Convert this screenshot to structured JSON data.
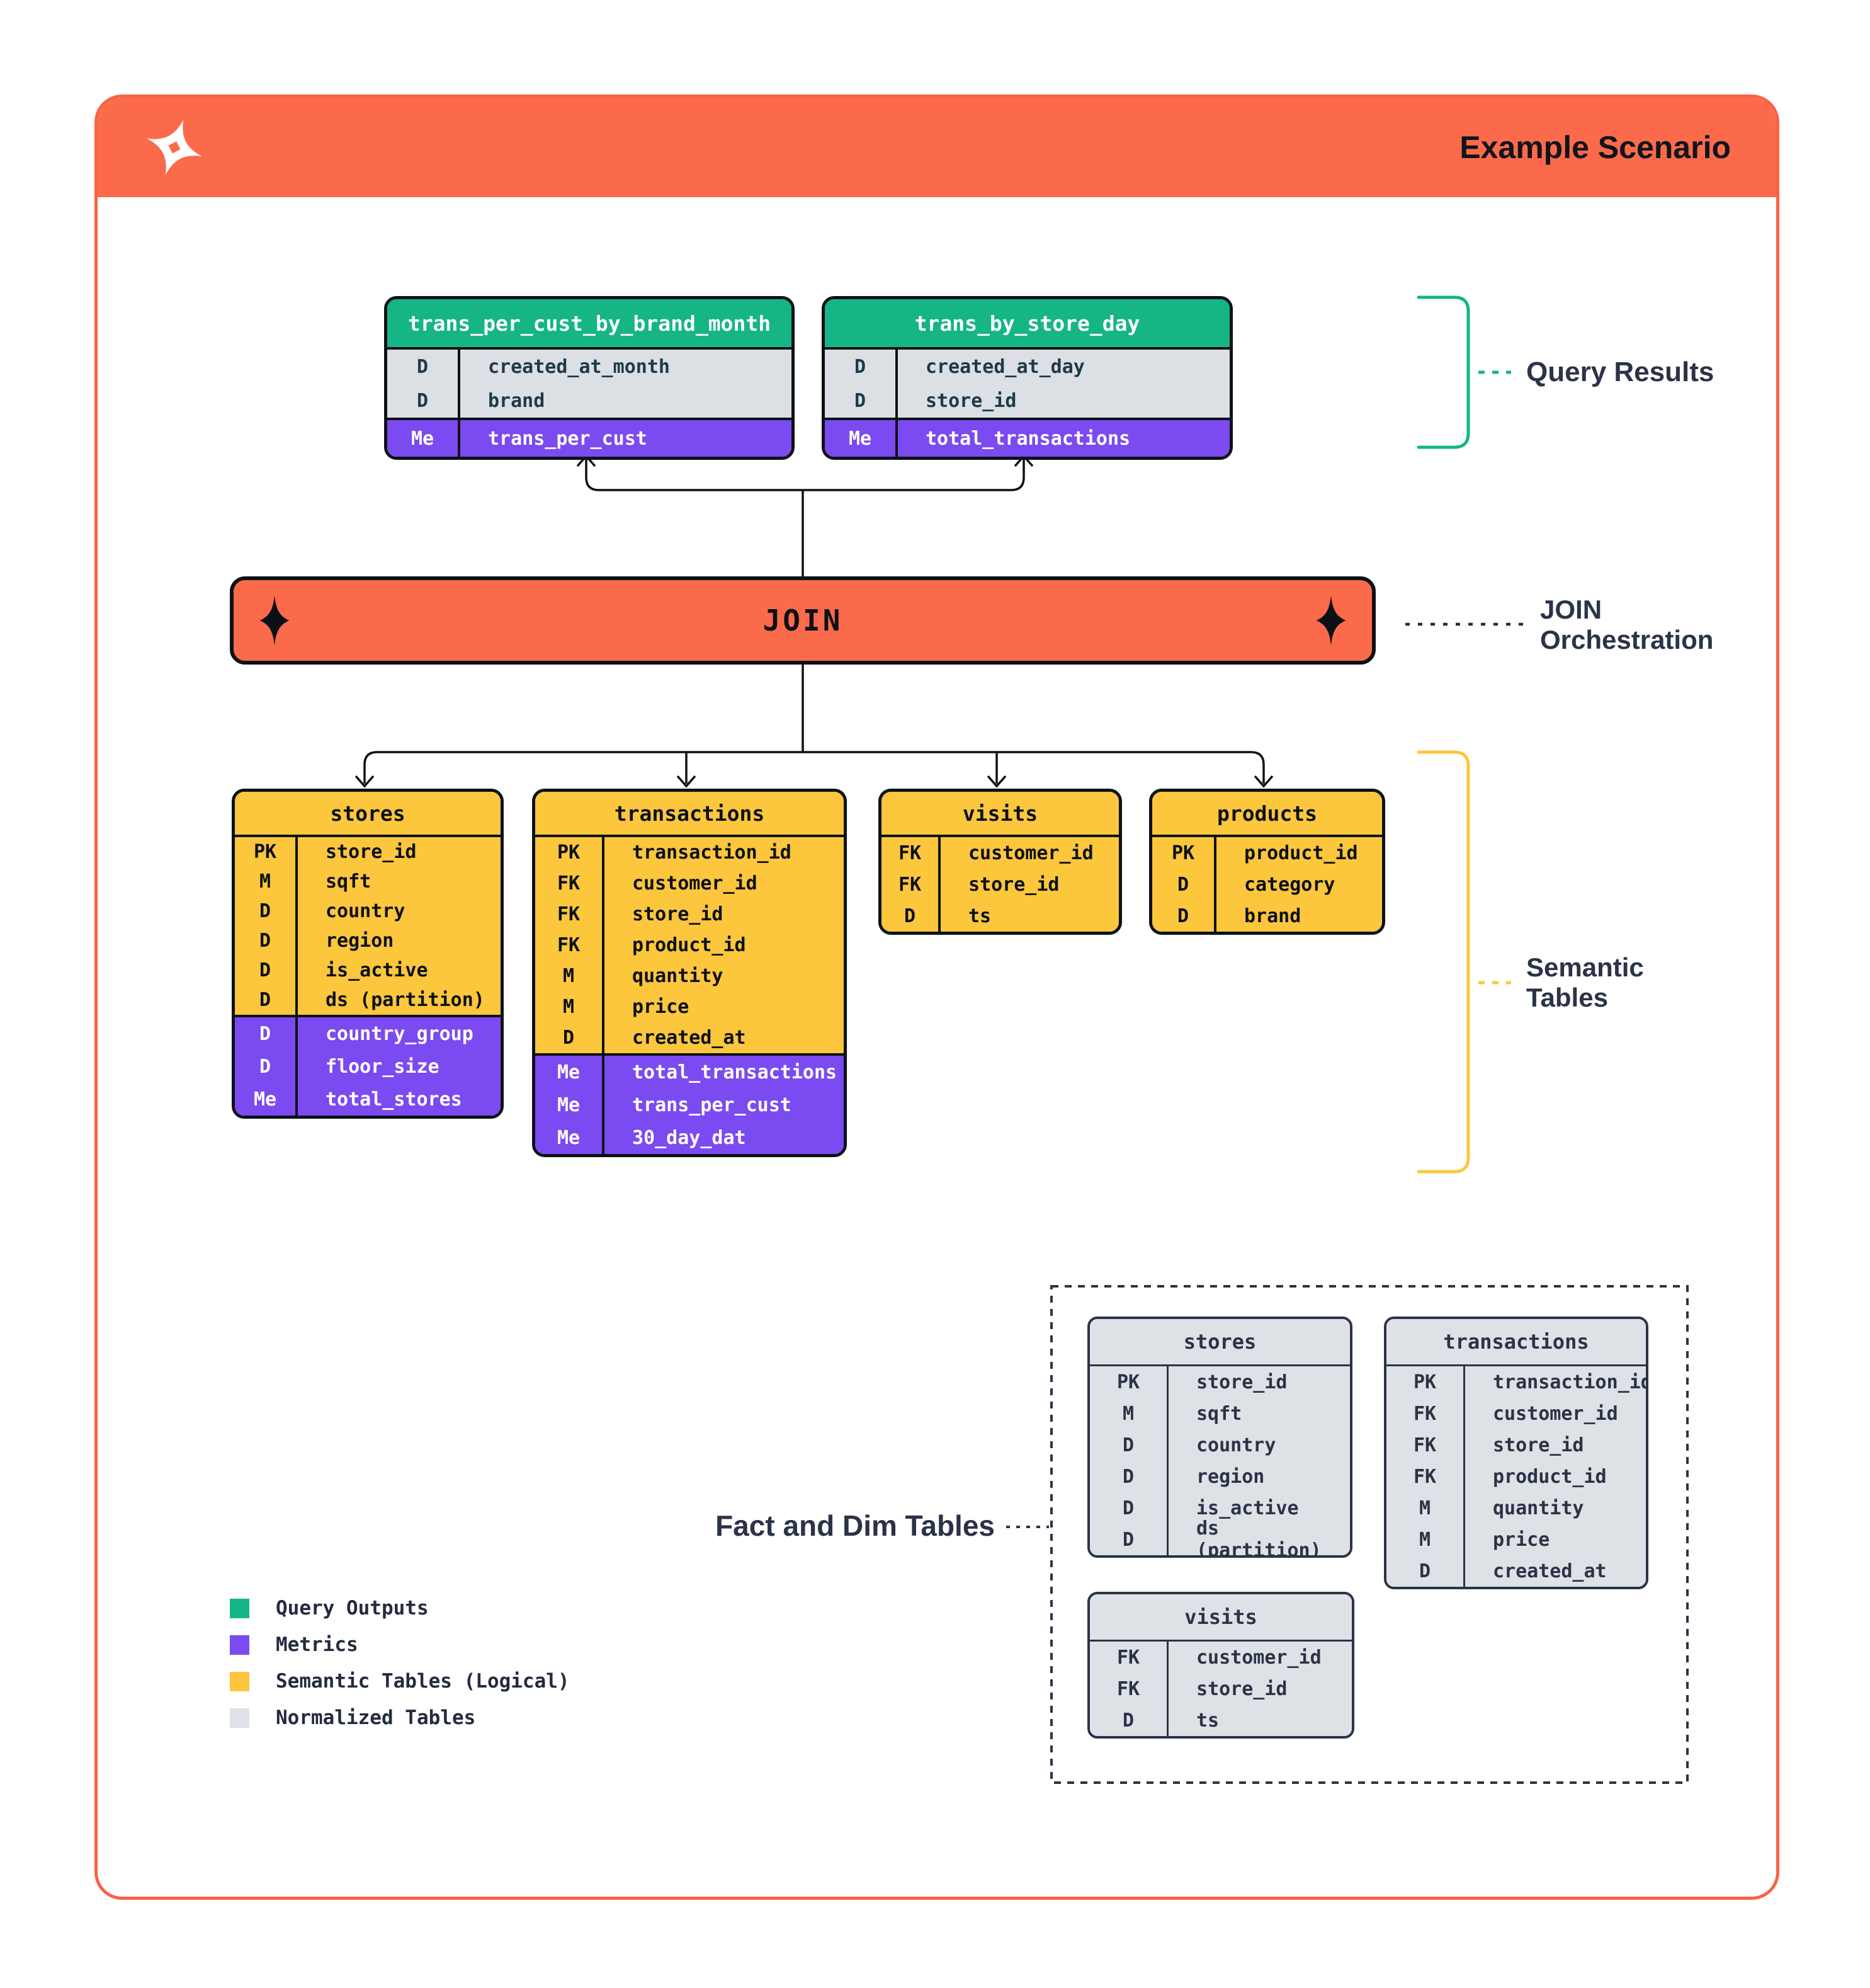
{
  "header": {
    "title": "Example Scenario",
    "logo_icon": "four-point-star-logo"
  },
  "colors": {
    "accent_orange": "#FB6A4A",
    "frame_orange": "#F96247",
    "query_green": "#15B585",
    "metric_purple": "#7B4AF0",
    "semantic_yellow": "#FCC63D",
    "normalized_gray": "#DEE1E6",
    "ink_black": "#0D1117",
    "navy_text": "#2A3348"
  },
  "annotations": {
    "query_results": "Query Results",
    "join_line1": "JOIN",
    "join_line2": "Orchestration",
    "semantic_line1": "Semantic",
    "semantic_line2": "Tables",
    "fact_dim": "Fact and Dim Tables"
  },
  "join": {
    "label": "JOIN"
  },
  "query_results": {
    "tables": [
      {
        "title": "trans_per_cust_by_brand_month",
        "sections": [
          {
            "style": "gray",
            "rows": [
              [
                "D",
                "created_at_month"
              ],
              [
                "D",
                "brand"
              ]
            ]
          },
          {
            "style": "purple",
            "rows": [
              [
                "Me",
                "trans_per_cust"
              ]
            ]
          }
        ]
      },
      {
        "title": "trans_by_store_day",
        "sections": [
          {
            "style": "gray",
            "rows": [
              [
                "D",
                "created_at_day"
              ],
              [
                "D",
                "store_id"
              ]
            ]
          },
          {
            "style": "purple",
            "rows": [
              [
                "Me",
                "total_transactions"
              ]
            ]
          }
        ]
      }
    ]
  },
  "semantic_tables": {
    "tables": [
      {
        "title": "stores",
        "sections": [
          {
            "style": "yellow",
            "rows": [
              [
                "PK",
                "store_id"
              ],
              [
                "M",
                "sqft"
              ],
              [
                "D",
                "country"
              ],
              [
                "D",
                "region"
              ],
              [
                "D",
                "is_active"
              ],
              [
                "D",
                "ds (partition)"
              ]
            ]
          },
          {
            "style": "purple",
            "rows": [
              [
                "D",
                "country_group"
              ],
              [
                "D",
                "floor_size"
              ],
              [
                "Me",
                "total_stores"
              ]
            ]
          }
        ]
      },
      {
        "title": "transactions",
        "sections": [
          {
            "style": "yellow",
            "rows": [
              [
                "PK",
                "transaction_id"
              ],
              [
                "FK",
                "customer_id"
              ],
              [
                "FK",
                "store_id"
              ],
              [
                "FK",
                "product_id"
              ],
              [
                "M",
                "quantity"
              ],
              [
                "M",
                "price"
              ],
              [
                "D",
                "created_at"
              ]
            ]
          },
          {
            "style": "purple",
            "rows": [
              [
                "Me",
                "total_transactions"
              ],
              [
                "Me",
                "trans_per_cust"
              ],
              [
                "Me",
                "30_day_dat"
              ]
            ]
          }
        ]
      },
      {
        "title": "visits",
        "sections": [
          {
            "style": "yellow",
            "rows": [
              [
                "FK",
                "customer_id"
              ],
              [
                "FK",
                "store_id"
              ],
              [
                "D",
                "ts"
              ]
            ]
          }
        ]
      },
      {
        "title": "products",
        "sections": [
          {
            "style": "yellow",
            "rows": [
              [
                "PK",
                "product_id"
              ],
              [
                "D",
                "category"
              ],
              [
                "D",
                "brand"
              ]
            ]
          }
        ]
      }
    ]
  },
  "normalized_tables": {
    "tables": [
      {
        "title": "stores",
        "sections": [
          {
            "style": "norm",
            "rows": [
              [
                "PK",
                "store_id"
              ],
              [
                "M",
                "sqft"
              ],
              [
                "D",
                "country"
              ],
              [
                "D",
                "region"
              ],
              [
                "D",
                "is_active"
              ],
              [
                "D",
                "ds (partition)"
              ]
            ]
          }
        ]
      },
      {
        "title": "transactions",
        "sections": [
          {
            "style": "norm",
            "rows": [
              [
                "PK",
                "transaction_id"
              ],
              [
                "FK",
                "customer_id"
              ],
              [
                "FK",
                "store_id"
              ],
              [
                "FK",
                "product_id"
              ],
              [
                "M",
                "quantity"
              ],
              [
                "M",
                "price"
              ],
              [
                "D",
                "created_at"
              ]
            ]
          }
        ]
      },
      {
        "title": "visits",
        "sections": [
          {
            "style": "norm",
            "rows": [
              [
                "FK",
                "customer_id"
              ],
              [
                "FK",
                "store_id"
              ],
              [
                "D",
                "ts"
              ]
            ]
          }
        ]
      }
    ]
  },
  "legend": {
    "items": [
      {
        "label": "Query Outputs",
        "color": "#15B585"
      },
      {
        "label": "Metrics",
        "color": "#7B4AF0"
      },
      {
        "label": "Semantic Tables (Logical)",
        "color": "#FCC63D"
      },
      {
        "label": "Normalized Tables",
        "color": "#DEE1E6"
      }
    ]
  }
}
